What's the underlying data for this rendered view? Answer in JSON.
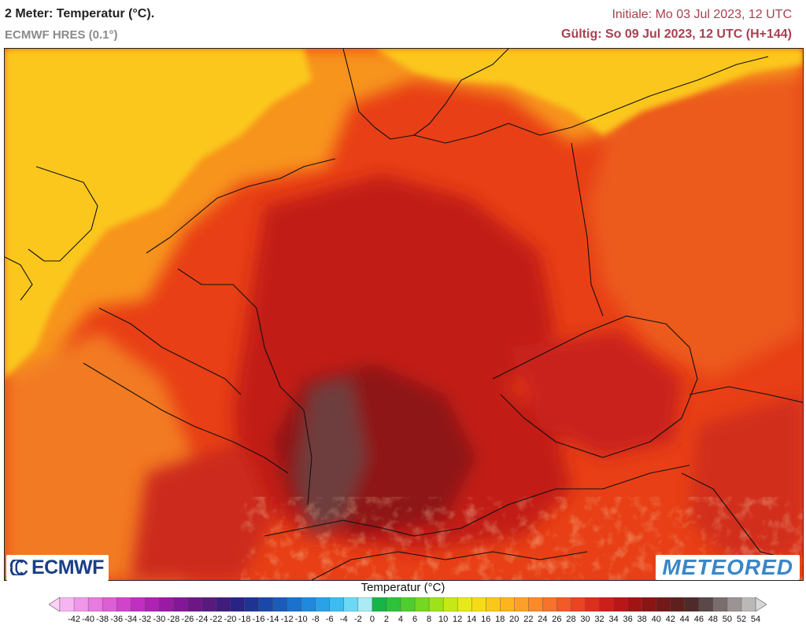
{
  "header": {
    "title": "2 Meter: Temperatur (°C).",
    "model": "ECMWF HRES (0.1°)",
    "init": "Initiale: Mo 03 Jul 2023, 12 UTC",
    "valid": "Gültig: So 09 Jul 2023, 12 UTC (H+144)"
  },
  "logos": {
    "left": "ECMWF",
    "right": "METEORED"
  },
  "legend": {
    "title": "Temperatur (°C)",
    "ticks": [
      "-42",
      "-40",
      "-38",
      "-36",
      "-34",
      "-32",
      "-30",
      "-28",
      "-26",
      "-24",
      "-22",
      "-20",
      "-18",
      "-16",
      "-14",
      "-12",
      "-10",
      "-8",
      "-6",
      "-4",
      "-2",
      "0",
      "2",
      "4",
      "6",
      "8",
      "10",
      "12",
      "14",
      "16",
      "18",
      "20",
      "22",
      "24",
      "26",
      "28",
      "30",
      "32",
      "34",
      "36",
      "38",
      "40",
      "42",
      "44",
      "46",
      "48",
      "50",
      "52",
      "54"
    ],
    "colors": [
      "#fbd2f8",
      "#f7b4f2",
      "#f097ea",
      "#e87ae0",
      "#de5ed6",
      "#d243cc",
      "#c22ec1",
      "#ae22b4",
      "#9a1aa6",
      "#841797",
      "#6e1688",
      "#591a80",
      "#3f1c7e",
      "#2a2386",
      "#1f3393",
      "#1b47a6",
      "#1a5cba",
      "#1b72cd",
      "#1f89dd",
      "#29a2ea",
      "#3bbcf3",
      "#6bd8f6",
      "#a9ecf3",
      "#17b44a",
      "#2dc23a",
      "#4ece2e",
      "#74d822",
      "#9ee21b",
      "#c6e817",
      "#e7ea16",
      "#f6dc17",
      "#fbc81a",
      "#fdb41d",
      "#fda02a",
      "#fb8a2b",
      "#f7722a",
      "#f25a27",
      "#ea4421",
      "#de2e1c",
      "#cc1f1a",
      "#b81717",
      "#a11414",
      "#8b1414",
      "#751818",
      "#5f1f1f",
      "#4e2a2a",
      "#5c4848",
      "#7a6d6d",
      "#9c9494",
      "#bcb8b8",
      "#d8d6d6"
    ]
  }
}
